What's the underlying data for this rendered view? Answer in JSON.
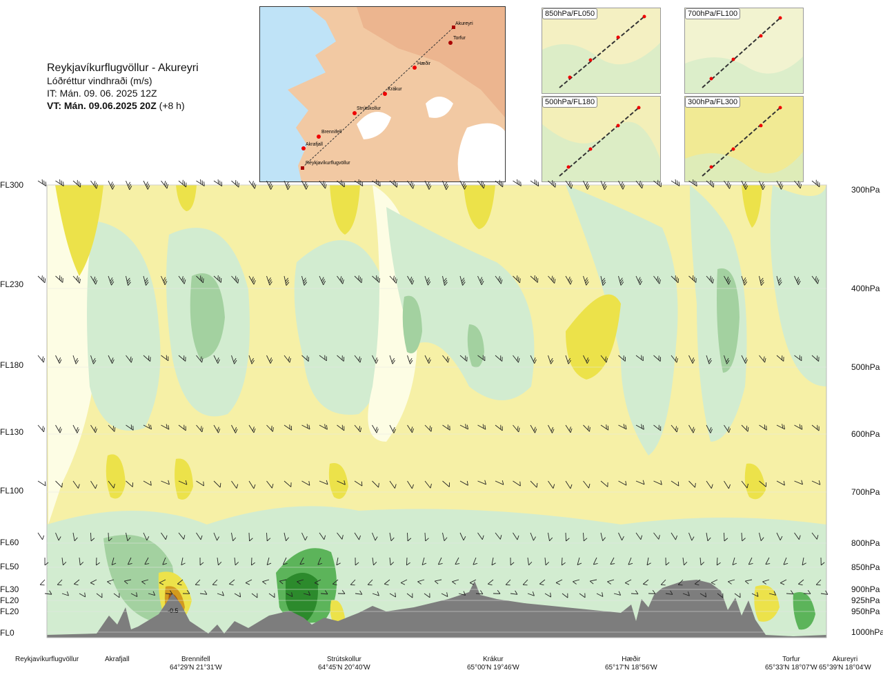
{
  "title": {
    "route": "Reykjavíkurflugvöllur - Akureyri",
    "subtitle": "Lóðréttur vindhraði (m/s)",
    "issue_time": "IT: Mán. 09. 06. 2025 12Z",
    "valid_time": "VT: Mán. 09.06.2025 20Z",
    "lead": "(+8 h)"
  },
  "map": {
    "waypoints": [
      {
        "name": "Akureyri"
      },
      {
        "name": "Torfur"
      },
      {
        "name": "Hæðir"
      },
      {
        "name": "Krákur"
      },
      {
        "name": "Strútskollur"
      },
      {
        "name": "Brennifell"
      },
      {
        "name": "Akrafjall"
      },
      {
        "name": "Reykjavíkurflugvöllur"
      }
    ]
  },
  "level_maps": [
    {
      "label": "850hPa/FL050"
    },
    {
      "label": "700hPa/FL100"
    },
    {
      "label": "500hPa/FL180"
    },
    {
      "label": "300hPa/FL300"
    }
  ],
  "chart_data": {
    "type": "heatmap",
    "title": "Lóðréttur vindhraði (m/s)",
    "y_left_ticks": [
      "FL300",
      "FL230",
      "FL180",
      "FL130",
      "FL100",
      "FL60",
      "FL50",
      "FL30",
      "FL20",
      "FL20",
      "FL0"
    ],
    "y_right_ticks": [
      "300hPa",
      "400hPa",
      "500hPa",
      "600hPa",
      "700hPa",
      "800hPa",
      "850hPa",
      "900hPa",
      "925hPa",
      "950hPa",
      "1000hPa"
    ],
    "y_pressure_levels_hpa": [
      300,
      400,
      500,
      600,
      700,
      800,
      850,
      900,
      925,
      950,
      1000
    ],
    "ylim_hpa": [
      1000,
      300
    ],
    "contour_annotation": "-0.5",
    "x_waypoints": [
      {
        "name": "Reykjavíkurflugvöllur",
        "coord": ""
      },
      {
        "name": "Akrafjall",
        "coord": ""
      },
      {
        "name": "Brennifell",
        "coord": "64°29'N 21°31'W"
      },
      {
        "name": "Strútskollur",
        "coord": "64°45'N 20°40'W"
      },
      {
        "name": "Krákur",
        "coord": "65°00'N 19°46'W"
      },
      {
        "name": "Hæðir",
        "coord": "65°17'N 18°56'W"
      },
      {
        "name": "Torfur",
        "coord": "65°33'N 18°07'W"
      },
      {
        "name": "Akureyri",
        "coord": "65°39'N 18°04'W"
      }
    ],
    "colors": {
      "positive_weak": "#f6f0a6",
      "positive_mid": "#ece24a",
      "positive_strong": "#d29a1e",
      "positive_extreme": "#a65410",
      "neutral": "#fdfde4",
      "negative_weak": "#d2ecd0",
      "negative_mid": "#a3d1a0",
      "negative_strong": "#5cb45a",
      "negative_extreme": "#2c8a2c",
      "terrain": "#7d7d7d"
    }
  }
}
